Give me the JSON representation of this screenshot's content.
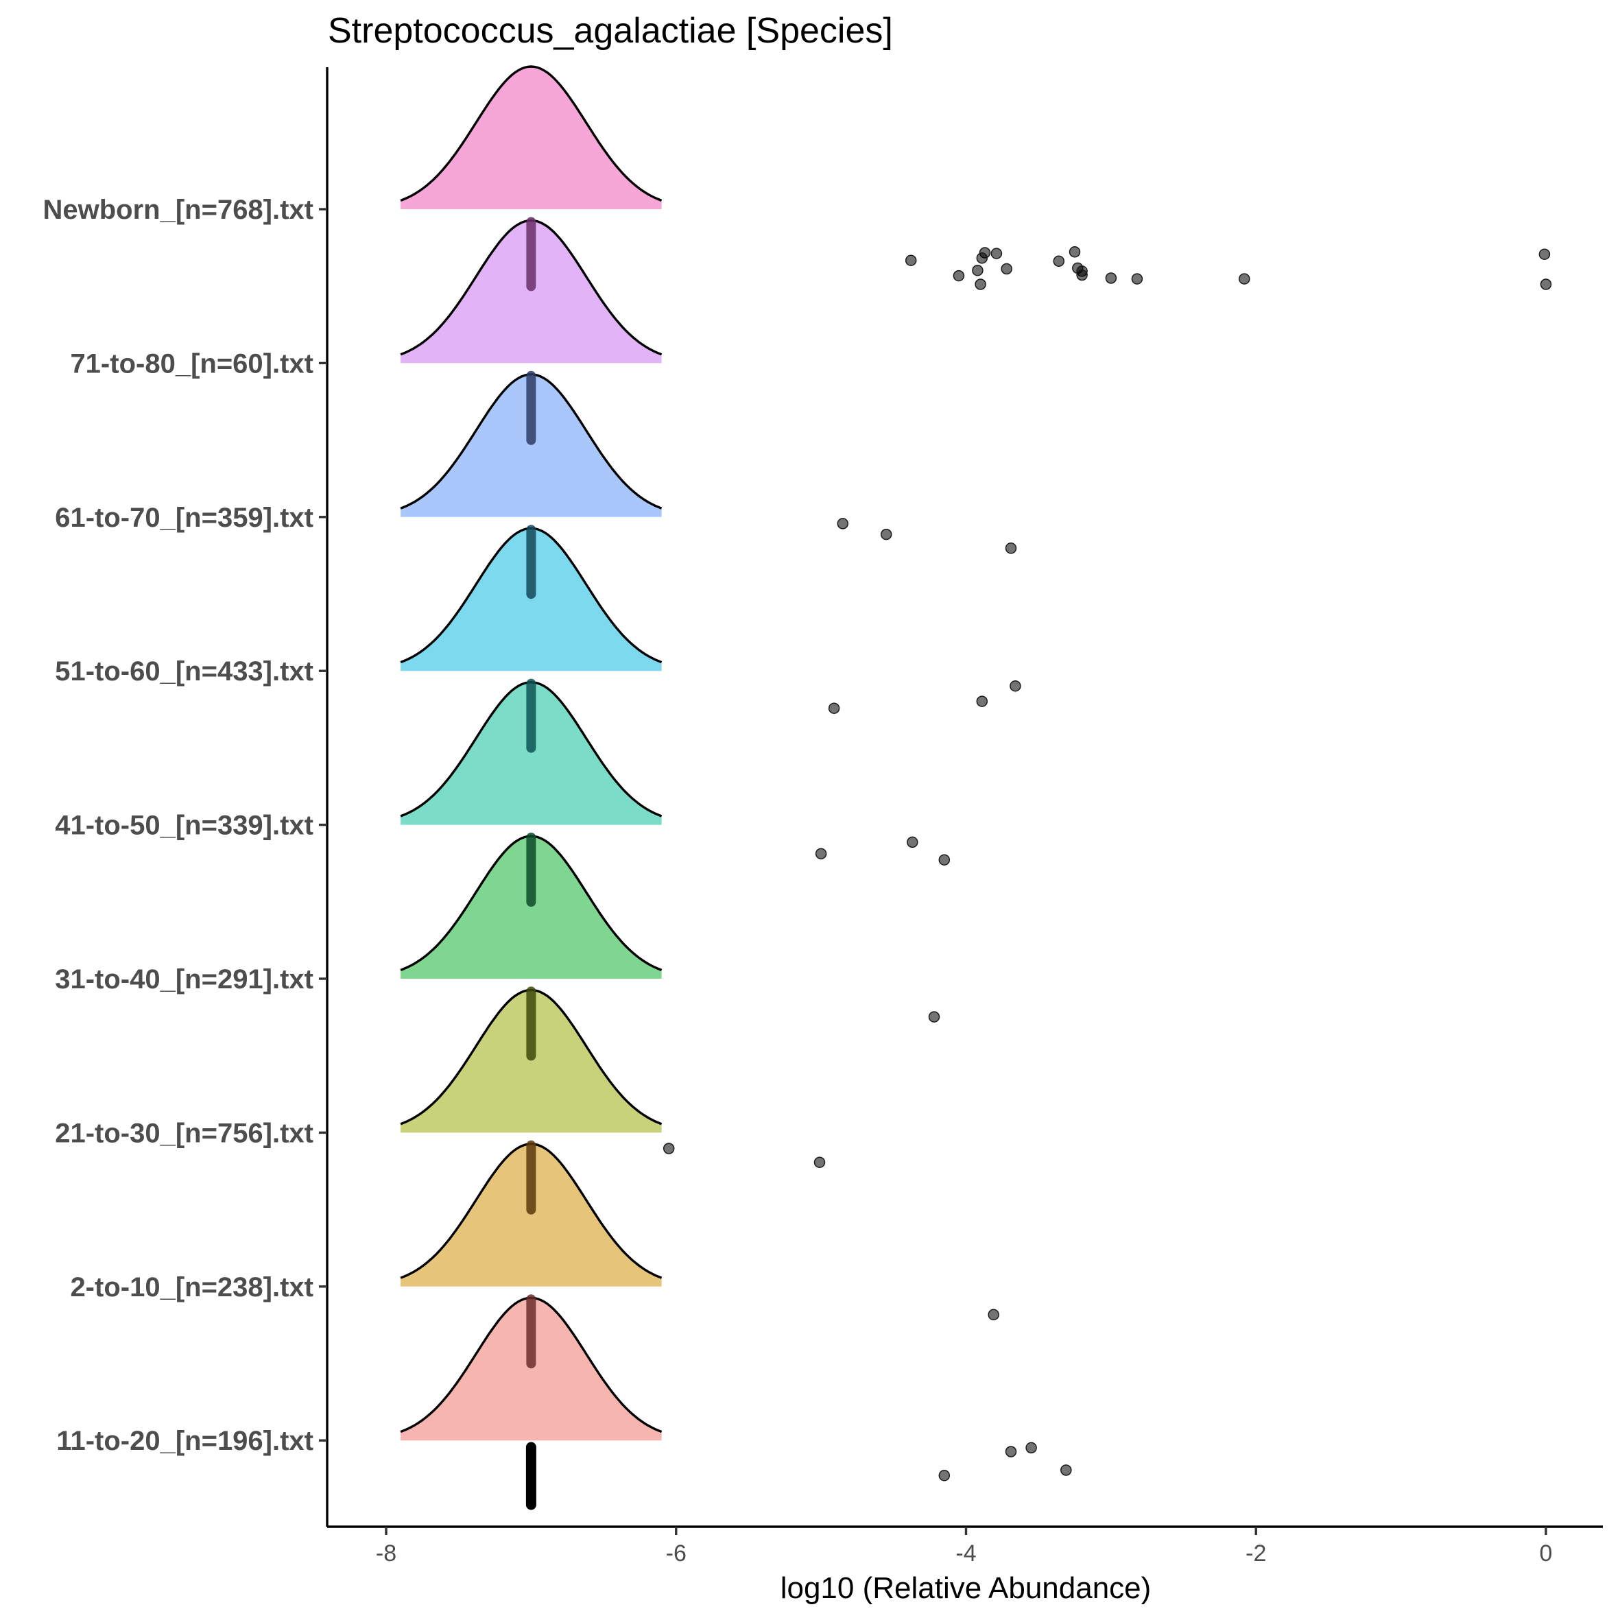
{
  "chart_data": {
    "type": "ridgeline-density-with-points",
    "title": "Streptococcus_agalactiae [Species]",
    "xlabel": "log10 (Relative Abundance)",
    "ylabel": "",
    "xlim": [
      -8.4,
      0.8
    ],
    "x_ticks": [
      -8,
      -6,
      -4,
      -2,
      0
    ],
    "x_tick_labels": [
      "-8",
      "-6",
      "-4",
      "-2",
      "0"
    ],
    "grid": false,
    "legend": "none",
    "categories_top_to_bottom": [
      "Newborn_[n=768].txt",
      "71-to-80_[n=60].txt",
      "61-to-70_[n=359].txt",
      "51-to-60_[n=433].txt",
      "41-to-50_[n=339].txt",
      "31-to-40_[n=291].txt",
      "21-to-30_[n=756].txt",
      "2-to-10_[n=238].txt",
      "11-to-20_[n=196].txt"
    ],
    "ridges": [
      {
        "category": "Newborn_[n=768].txt",
        "color": "#F7A7D7",
        "median_color": "#6B2E6B",
        "peak_x": -7.0,
        "density_range": [
          -7.9,
          -6.1
        ],
        "points": [
          [
            -4.38,
            0.63
          ],
          [
            -3.87,
            0.53
          ],
          [
            -3.79,
            0.54
          ],
          [
            -3.89,
            0.6
          ],
          [
            -3.25,
            0.52
          ],
          [
            -3.36,
            0.64
          ],
          [
            -3.23,
            0.73
          ],
          [
            -3.2,
            0.77
          ],
          [
            -3.2,
            0.82
          ],
          [
            -3.72,
            0.74
          ],
          [
            -3.92,
            0.76
          ],
          [
            -4.05,
            0.83
          ],
          [
            -3.9,
            0.94
          ],
          [
            -3.0,
            0.86
          ],
          [
            -2.82,
            0.87
          ],
          [
            -2.08,
            0.87
          ],
          [
            -0.01,
            0.55
          ],
          [
            0.0,
            0.94
          ]
        ]
      },
      {
        "category": "71-to-80_[n=60].txt",
        "color": "#E2B4F7",
        "median_color": "#2E3E66",
        "peak_x": -7.0,
        "density_range": [
          -7.9,
          -6.1
        ],
        "points": []
      },
      {
        "category": "61-to-70_[n=359].txt",
        "color": "#A9C7FA",
        "median_color": "#154A5C",
        "peak_x": -7.0,
        "density_range": [
          -7.9,
          -6.1
        ],
        "points": [
          [
            -4.85,
            0.05
          ],
          [
            -4.55,
            0.19
          ],
          [
            -3.69,
            0.37
          ]
        ]
      },
      {
        "category": "51-to-60_[n=433].txt",
        "color": "#7DD9EE",
        "median_color": "#0E5454",
        "peak_x": -7.0,
        "density_range": [
          -7.9,
          -6.1
        ],
        "points": [
          [
            -3.66,
            0.16
          ],
          [
            -3.89,
            0.36
          ],
          [
            -4.91,
            0.45
          ]
        ]
      },
      {
        "category": "41-to-50_[n=339].txt",
        "color": "#7BDCC8",
        "median_color": "#0C4B2A",
        "peak_x": -7.0,
        "density_range": [
          -7.9,
          -6.1
        ],
        "points": [
          [
            -4.37,
            0.19
          ],
          [
            -5.0,
            0.34
          ],
          [
            -4.15,
            0.42
          ]
        ]
      },
      {
        "category": "31-to-40_[n=291].txt",
        "color": "#7ED690",
        "median_color": "#3E4A0C",
        "peak_x": -7.0,
        "density_range": [
          -7.9,
          -6.1
        ],
        "points": [
          [
            -4.22,
            0.46
          ]
        ]
      },
      {
        "category": "21-to-30_[n=756].txt",
        "color": "#C8D27A",
        "median_color": "#5A3A0C",
        "peak_x": -7.0,
        "density_range": [
          -7.9,
          -6.1
        ],
        "points": [
          [
            -6.05,
            0.17
          ],
          [
            -5.01,
            0.35
          ]
        ]
      },
      {
        "category": "2-to-10_[n=238].txt",
        "color": "#E6C57B",
        "median_color": "#6B2E2E",
        "peak_x": -7.0,
        "density_range": [
          -7.9,
          -6.1
        ],
        "points": [
          [
            -3.81,
            0.33
          ]
        ]
      },
      {
        "category": "11-to-20_[n=196].txt",
        "color": "#F7B5B0",
        "median_color": "#000000",
        "peak_x": -7.0,
        "density_range": [
          -7.9,
          -6.1
        ],
        "points": [
          [
            -3.55,
            0.06
          ],
          [
            -3.69,
            0.11
          ],
          [
            -3.31,
            0.35
          ],
          [
            -4.15,
            0.42
          ]
        ]
      }
    ]
  }
}
